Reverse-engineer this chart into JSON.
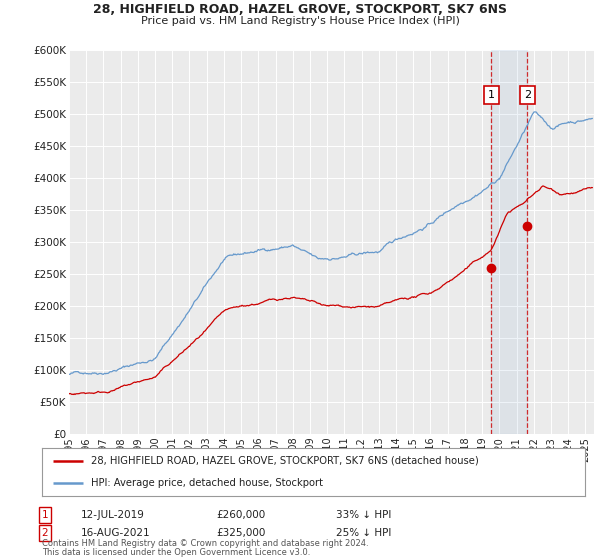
{
  "title": "28, HIGHFIELD ROAD, HAZEL GROVE, STOCKPORT, SK7 6NS",
  "subtitle": "Price paid vs. HM Land Registry's House Price Index (HPI)",
  "ylim": [
    0,
    600000
  ],
  "yticks": [
    0,
    50000,
    100000,
    150000,
    200000,
    250000,
    300000,
    350000,
    400000,
    450000,
    500000,
    550000,
    600000
  ],
  "ytick_labels": [
    "£0",
    "£50K",
    "£100K",
    "£150K",
    "£200K",
    "£250K",
    "£300K",
    "£350K",
    "£400K",
    "£450K",
    "£500K",
    "£550K",
    "£600K"
  ],
  "xlim_start": 1995.0,
  "xlim_end": 2025.5,
  "background_color": "#ffffff",
  "plot_bg_color": "#ebebeb",
  "grid_color": "#ffffff",
  "red_line_color": "#cc0000",
  "blue_line_color": "#6699cc",
  "sale1_x": 2019.53,
  "sale1_y": 260000,
  "sale2_x": 2021.62,
  "sale2_y": 325000,
  "sale1_date": "12-JUL-2019",
  "sale1_price": "£260,000",
  "sale1_hpi": "33% ↓ HPI",
  "sale2_date": "16-AUG-2021",
  "sale2_price": "£325,000",
  "sale2_hpi": "25% ↓ HPI",
  "legend_line1": "28, HIGHFIELD ROAD, HAZEL GROVE, STOCKPORT, SK7 6NS (detached house)",
  "legend_line2": "HPI: Average price, detached house, Stockport",
  "footer1": "Contains HM Land Registry data © Crown copyright and database right 2024.",
  "footer2": "This data is licensed under the Open Government Licence v3.0."
}
